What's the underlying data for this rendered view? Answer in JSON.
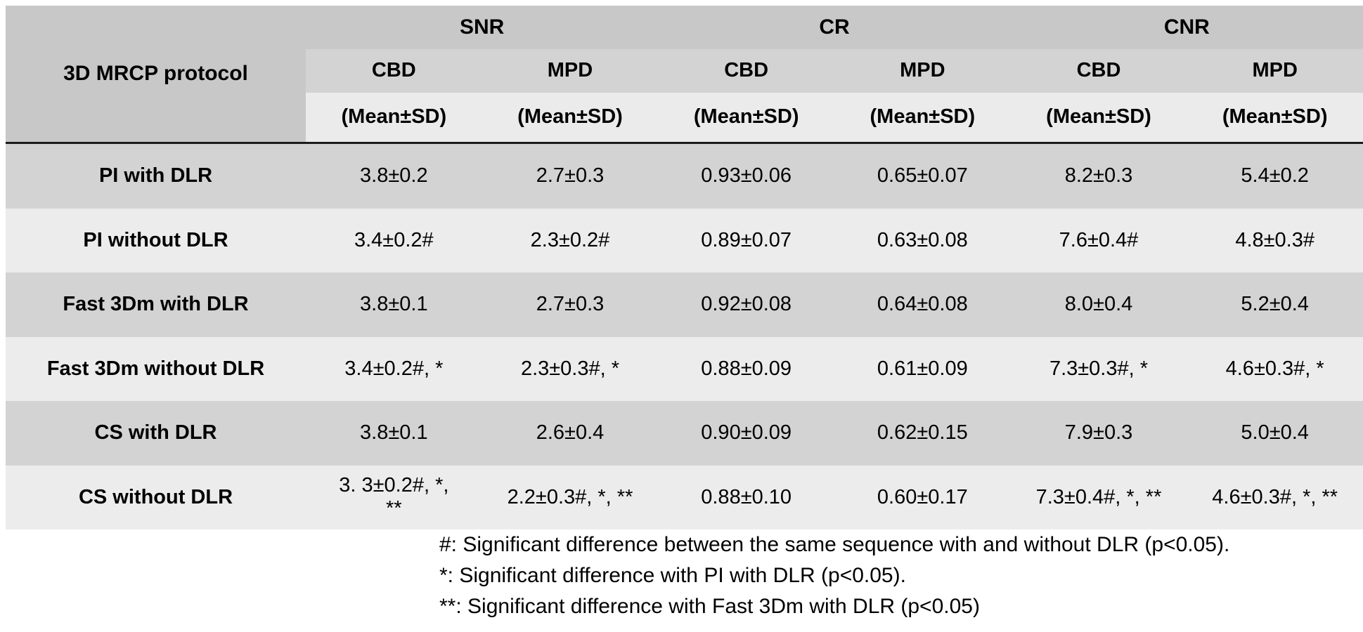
{
  "table": {
    "corner_header": "3D MRCP protocol",
    "group_headers": [
      "SNR",
      "CR",
      "CNR"
    ],
    "column_headers": [
      "CBD",
      "MPD",
      "CBD",
      "MPD",
      "CBD",
      "MPD"
    ],
    "unit_labels": [
      "(Mean±SD)",
      "(Mean±SD)",
      "(Mean±SD)",
      "(Mean±SD)",
      "(Mean±SD)",
      "(Mean±SD)"
    ],
    "rows": [
      {
        "protocol": "PI with DLR",
        "values": [
          "3.8±0.2",
          "2.7±0.3",
          "0.93±0.06",
          "0.65±0.07",
          "8.2±0.3",
          "5.4±0.2"
        ]
      },
      {
        "protocol": "PI without DLR",
        "values": [
          "3.4±0.2#",
          "2.3±0.2#",
          "0.89±0.07",
          "0.63±0.08",
          "7.6±0.4#",
          "4.8±0.3#"
        ]
      },
      {
        "protocol": "Fast 3Dm with DLR",
        "values": [
          "3.8±0.1",
          "2.7±0.3",
          "0.92±0.08",
          "0.64±0.08",
          "8.0±0.4",
          "5.2±0.4"
        ]
      },
      {
        "protocol": "Fast 3Dm without DLR",
        "values": [
          "3.4±0.2#, *",
          "2.3±0.3#, *",
          "0.88±0.09",
          "0.61±0.09",
          "7.3±0.3#, *",
          "4.6±0.3#, *"
        ]
      },
      {
        "protocol": "CS with DLR",
        "values": [
          "3.8±0.1",
          "2.6±0.4",
          "0.90±0.09",
          "0.62±0.15",
          "7.9±0.3",
          "5.0±0.4"
        ]
      },
      {
        "protocol": "CS without DLR",
        "values": [
          "3. 3±0.2#, *,\n**",
          "2.2±0.3#, *, **",
          "0.88±0.10",
          "0.60±0.17",
          "7.3±0.4#, *, **",
          "4.6±0.3#, *, **"
        ]
      }
    ]
  },
  "footnotes": {
    "hash": "#: Significant difference between the same sequence with and without DLR (p<0.05).",
    "star": "*: Significant difference with PI with DLR (p<0.05).",
    "double_star": "**: Significant difference with Fast 3Dm with DLR (p<0.05)"
  },
  "colors": {
    "header_band": "#c8c8c8",
    "subheader_band": "#d3d3d3",
    "unit_band": "#ebebeb",
    "row_dark": "#d3d3d3",
    "row_light": "#ececec",
    "rule": "#1c1c1c",
    "text": "#000000",
    "background": "#ffffff"
  }
}
